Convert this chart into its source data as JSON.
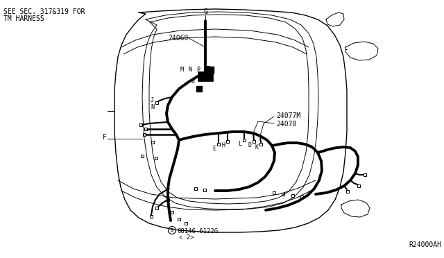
{
  "bg_color": "#ffffff",
  "lc": "#000000",
  "top_left_note_line1": "SEE SEC. 317&319 FOR",
  "top_left_note_line2": "TM HARNESS",
  "part_number_line1": "08146-6122G",
  "part_number_line2": "< 2>",
  "ref_number": "R24000AH",
  "figsize": [
    6.4,
    3.72
  ],
  "dpi": 100
}
